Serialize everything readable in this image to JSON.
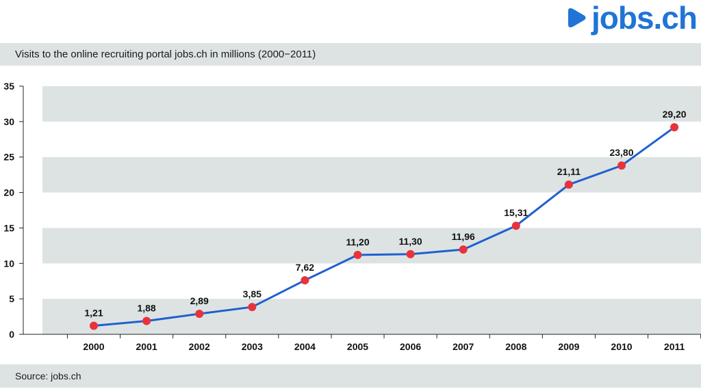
{
  "header": {
    "logo_text": "jobs.ch",
    "brand_color": "#1f74d6"
  },
  "title": "Visits to the online recruiting portal jobs.ch in millions (2000−2011)",
  "source": "Source: jobs.ch",
  "chart_data": {
    "type": "line",
    "title": "Visits to the online recruiting portal jobs.ch in millions (2000−2011)",
    "xlabel": "",
    "ylabel": "",
    "categories": [
      "2000",
      "2001",
      "2002",
      "2003",
      "2004",
      "2005",
      "2006",
      "2007",
      "2008",
      "2009",
      "2010",
      "2011"
    ],
    "series": [
      {
        "values": [
          1.21,
          1.88,
          2.89,
          3.85,
          7.62,
          11.2,
          11.3,
          11.96,
          15.31,
          21.11,
          23.8,
          29.2
        ],
        "labels": [
          "1,21",
          "1,88",
          "2,89",
          "3,85",
          "7,62",
          "11,20",
          "11,30",
          "11,96",
          "15,31",
          "21,11",
          "23,80",
          "29,20"
        ]
      }
    ],
    "ylim": [
      0,
      35
    ],
    "yticks": [
      0,
      5,
      10,
      15,
      20,
      25,
      30,
      35
    ],
    "grid": "alternating horizontal bands",
    "line_color": "#1f5fcf",
    "marker_color": "#e8333c",
    "band_color": "#dde3e3"
  }
}
